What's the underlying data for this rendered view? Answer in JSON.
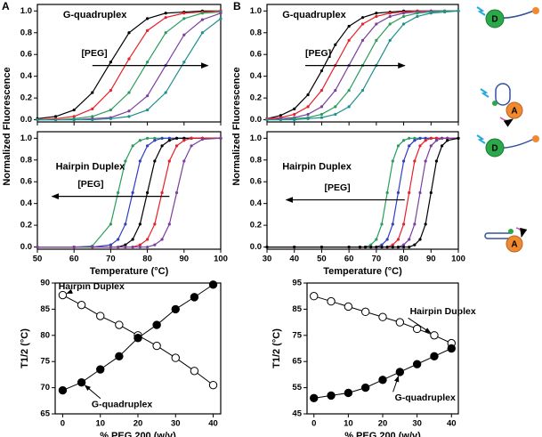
{
  "panels": [
    "A",
    "B"
  ],
  "icons": [
    "D",
    "A",
    "D",
    "A"
  ],
  "chart_data": [
    {
      "type": "line",
      "annotation": "G-quadruplex",
      "arrow_label": "[PEG]",
      "x": [
        50,
        55,
        60,
        65,
        70,
        75,
        80,
        85,
        90,
        95,
        100
      ],
      "xlim": [
        50,
        100
      ],
      "xticks": [
        50,
        60,
        70,
        80,
        90,
        100
      ],
      "ylim": [
        -0.02,
        1.06
      ],
      "yticks": [
        {
          "value": 0,
          "label": "0.0"
        },
        0.2,
        0.4,
        0.6,
        0.8,
        {
          "value": 1,
          "label": "1.0"
        }
      ],
      "series": [
        {
          "color": "#000000",
          "values": [
            0.01,
            0.03,
            0.09,
            0.25,
            0.53,
            0.8,
            0.93,
            0.98,
            0.99,
            1,
            1
          ]
        },
        {
          "color": "#e8202a",
          "values": [
            0,
            0.01,
            0.03,
            0.1,
            0.27,
            0.56,
            0.82,
            0.94,
            0.98,
            0.99,
            1
          ]
        },
        {
          "color": "#2a9d5c",
          "values": [
            0,
            0,
            0.01,
            0.03,
            0.09,
            0.25,
            0.53,
            0.8,
            0.93,
            0.98,
            0.99
          ]
        },
        {
          "color": "#7b3fa0",
          "values": [
            0,
            0,
            0,
            0.01,
            0.02,
            0.08,
            0.22,
            0.5,
            0.78,
            0.92,
            0.98
          ]
        },
        {
          "color": "#1f8f8f",
          "values": [
            0,
            0,
            0,
            0,
            0.01,
            0.03,
            0.09,
            0.25,
            0.53,
            0.8,
            0.93
          ]
        }
      ]
    },
    {
      "type": "line",
      "annotation": "Hairpin Duplex",
      "arrow_label": "[PEG]",
      "xlabel": "Temperature (°C)",
      "ylabel": "Normalized Fluorescence",
      "x": [
        50,
        60,
        65,
        70,
        72,
        74,
        76,
        78,
        80,
        82,
        84,
        86,
        88,
        90,
        92,
        95,
        100
      ],
      "xlim": [
        50,
        100
      ],
      "xticks": [
        50,
        60,
        70,
        80,
        90,
        100
      ],
      "ylim": [
        -0.02,
        1.06
      ],
      "yticks": [
        {
          "value": 0,
          "label": "0.0"
        },
        0.2,
        0.4,
        0.6,
        0.8,
        {
          "value": 1,
          "label": "1.0"
        }
      ],
      "series": [
        {
          "color": "#2a9d5c",
          "values": [
            0,
            0,
            0.01,
            0.21,
            0.5,
            0.79,
            0.93,
            0.98,
            1,
            1,
            1,
            1,
            1,
            1,
            1,
            1,
            1
          ]
        },
        {
          "color": "#3040c0",
          "values": [
            0,
            0,
            0,
            0.02,
            0.07,
            0.21,
            0.5,
            0.79,
            0.93,
            0.98,
            1,
            1,
            1,
            1,
            1,
            1,
            1
          ]
        },
        {
          "color": "#000000",
          "values": [
            0,
            0,
            0,
            0,
            0,
            0.02,
            0.07,
            0.21,
            0.5,
            0.79,
            0.93,
            0.98,
            1,
            1,
            1,
            1,
            1
          ]
        },
        {
          "color": "#e8202a",
          "values": [
            0,
            0,
            0,
            0,
            0,
            0,
            0,
            0.02,
            0.07,
            0.21,
            0.5,
            0.79,
            0.93,
            0.98,
            1,
            1,
            1
          ]
        },
        {
          "color": "#7b3fa0",
          "values": [
            0,
            0,
            0,
            0,
            0,
            0,
            0,
            0,
            0,
            0.02,
            0.07,
            0.21,
            0.5,
            0.79,
            0.93,
            0.99,
            1
          ]
        }
      ]
    },
    {
      "type": "line",
      "annotation": "G-quadruplex",
      "arrow_label": "[PEG]",
      "x": [
        30,
        35,
        40,
        45,
        50,
        55,
        60,
        65,
        70,
        75,
        80,
        85,
        90,
        95,
        100
      ],
      "xlim": [
        30,
        100
      ],
      "xticks": [
        30,
        40,
        50,
        60,
        70,
        80,
        90,
        100
      ],
      "ylim": [
        -0.02,
        1.06
      ],
      "yticks": [
        {
          "value": 0,
          "label": "0.0"
        },
        0.2,
        0.4,
        0.6,
        0.8,
        {
          "value": 1,
          "label": "1.0"
        }
      ],
      "series": [
        {
          "color": "#000000",
          "values": [
            0.01,
            0.04,
            0.1,
            0.23,
            0.45,
            0.69,
            0.86,
            0.94,
            0.98,
            0.99,
            1,
            1,
            1,
            1,
            1
          ]
        },
        {
          "color": "#e8202a",
          "values": [
            0.01,
            0.02,
            0.05,
            0.12,
            0.27,
            0.5,
            0.73,
            0.88,
            0.95,
            0.98,
            0.99,
            1,
            1,
            1,
            1
          ]
        },
        {
          "color": "#7b3fa0",
          "values": [
            0,
            0.01,
            0.02,
            0.05,
            0.12,
            0.27,
            0.5,
            0.73,
            0.88,
            0.95,
            0.98,
            0.99,
            1,
            1,
            1
          ]
        },
        {
          "color": "#2a9d5c",
          "values": [
            0,
            0,
            0.01,
            0.02,
            0.05,
            0.12,
            0.27,
            0.5,
            0.73,
            0.88,
            0.95,
            0.98,
            0.99,
            1,
            1
          ]
        },
        {
          "color": "#1f8f8f",
          "values": [
            0,
            0,
            0,
            0.01,
            0.02,
            0.05,
            0.12,
            0.27,
            0.5,
            0.73,
            0.88,
            0.95,
            0.98,
            0.99,
            1
          ]
        }
      ]
    },
    {
      "type": "line",
      "annotation": "Hairpin Duplex",
      "arrow_label": "[PEG]",
      "xlabel": "Temperature (°C)",
      "ylabel": "Normalized Fluorescence",
      "x": [
        30,
        40,
        50,
        60,
        64,
        66,
        68,
        70,
        72,
        74,
        76,
        78,
        80,
        82,
        84,
        86,
        88,
        90,
        92,
        94,
        96,
        100
      ],
      "xlim": [
        30,
        100
      ],
      "xticks": [
        30,
        40,
        50,
        60,
        70,
        80,
        90,
        100
      ],
      "ylim": [
        -0.02,
        1.06
      ],
      "yticks": [
        {
          "value": 0,
          "label": "0.0"
        },
        0.2,
        0.4,
        0.6,
        0.8,
        {
          "value": 1,
          "label": "1.0"
        }
      ],
      "series": [
        {
          "color": "#2a9d5c",
          "values": [
            0,
            0,
            0,
            0,
            0,
            0,
            0.02,
            0.07,
            0.21,
            0.5,
            0.79,
            0.93,
            0.98,
            1,
            1,
            1,
            1,
            1,
            1,
            1,
            1,
            1
          ]
        },
        {
          "color": "#3040c0",
          "values": [
            0,
            0,
            0,
            0,
            0,
            0,
            0,
            0,
            0.02,
            0.07,
            0.21,
            0.5,
            0.79,
            0.93,
            0.98,
            1,
            1,
            1,
            1,
            1,
            1,
            1
          ]
        },
        {
          "color": "#e8202a",
          "values": [
            0,
            0,
            0,
            0,
            0,
            0,
            0,
            0,
            0,
            0,
            0.02,
            0.07,
            0.21,
            0.5,
            0.79,
            0.93,
            0.98,
            1,
            1,
            1,
            1,
            1
          ]
        },
        {
          "color": "#7b3fa0",
          "values": [
            0,
            0,
            0,
            0,
            0,
            0,
            0,
            0,
            0,
            0,
            0,
            0,
            0.02,
            0.07,
            0.21,
            0.5,
            0.79,
            0.93,
            0.98,
            1,
            1,
            1
          ]
        },
        {
          "color": "#000000",
          "values": [
            0,
            0,
            0,
            0,
            0,
            0,
            0,
            0,
            0,
            0,
            0,
            0,
            0,
            0,
            0.02,
            0.07,
            0.21,
            0.5,
            0.79,
            0.93,
            0.98,
            1
          ]
        }
      ]
    },
    {
      "type": "scatter-line",
      "xlabel": "% PEG 200 (w/v)",
      "ylabel": "T1/2 (°C)",
      "x": [
        0,
        5,
        10,
        15,
        20,
        25,
        30,
        35,
        40
      ],
      "xlim": [
        -2,
        42
      ],
      "xticks": [
        0,
        10,
        20,
        30,
        40
      ],
      "ylim": [
        65,
        90
      ],
      "yticks": [
        65,
        70,
        75,
        80,
        85,
        90
      ],
      "series": [
        {
          "name": "Hairpin Duplex",
          "color": "#000000",
          "marker": "open",
          "values": [
            87.7,
            85.8,
            83.7,
            82,
            80,
            78,
            75.7,
            73.2,
            70.5
          ]
        },
        {
          "name": "G-quadruplex",
          "color": "#000000",
          "marker": "filled",
          "values": [
            69.5,
            71,
            73.5,
            76,
            79.5,
            82,
            85,
            87.3,
            89.7
          ]
        }
      ]
    },
    {
      "type": "scatter-line",
      "xlabel": "% PEG 200 (w/v)",
      "ylabel": "T1/2 (°C)",
      "x": [
        0,
        5,
        10,
        15,
        20,
        25,
        30,
        35,
        40
      ],
      "xlim": [
        -2,
        42
      ],
      "xticks": [
        0,
        10,
        20,
        30,
        40
      ],
      "ylim": [
        45,
        95
      ],
      "yticks": [
        45,
        55,
        65,
        75,
        85,
        95
      ],
      "series": [
        {
          "name": "Hairpin Duplex",
          "color": "#000000",
          "marker": "open",
          "values": [
            90,
            88,
            86,
            84,
            82,
            80,
            77.5,
            75,
            72
          ]
        },
        {
          "name": "G-quadruplex",
          "color": "#000000",
          "marker": "filled",
          "values": [
            51,
            52,
            53,
            55,
            58,
            61,
            64,
            67,
            70
          ]
        }
      ]
    }
  ]
}
